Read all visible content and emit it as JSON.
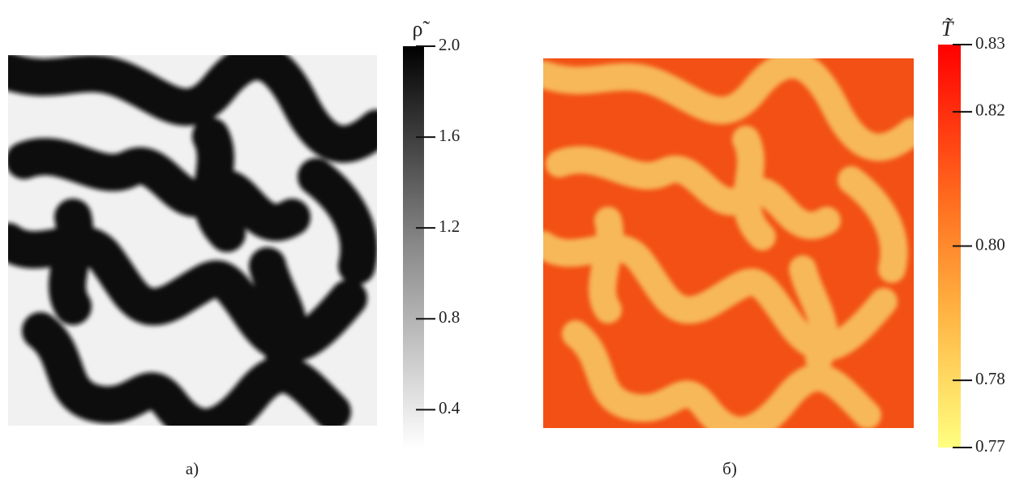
{
  "panels": [
    {
      "caption": "а)",
      "colorbar": {
        "label": "ρ̃",
        "lim": [
          0.23,
          2.0
        ],
        "ticks": [
          {
            "value": 2,
            "label": "2.0"
          },
          1.6,
          1.2,
          0.8,
          0.4
        ]
      }
    },
    {
      "caption": "б)",
      "colorbar": {
        "label": "T̃",
        "lim": [
          0.77,
          0.83
        ],
        "ticks": [
          0.83,
          0.82,
          {
            "value": 0.8,
            "label": "0.80"
          },
          0.78,
          0.77
        ]
      }
    }
  ]
}
